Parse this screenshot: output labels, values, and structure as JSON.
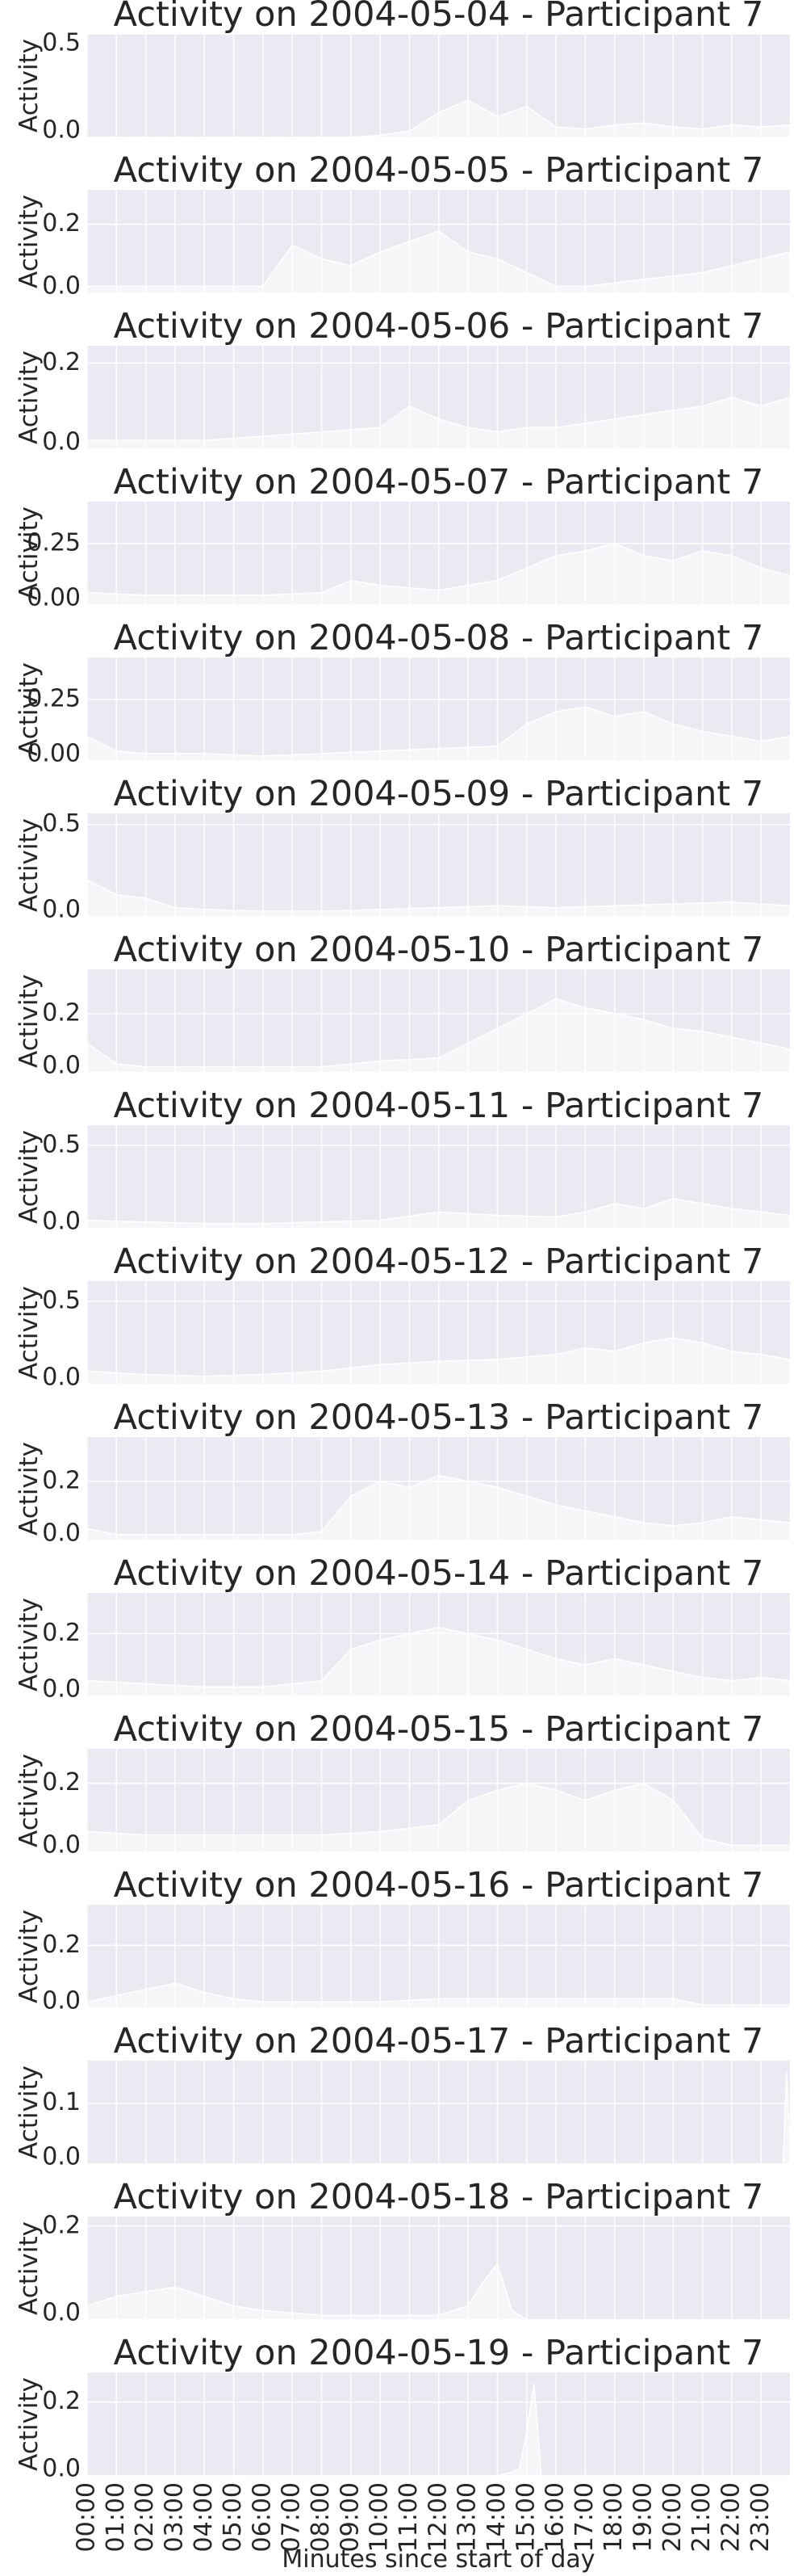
{
  "colors": {
    "axes_bg": "#eaeaf2",
    "grid": "#ffffff",
    "trace": "#ffffff",
    "text": "#262626"
  },
  "xlabel": "Minutes since start of day",
  "x_ticks": [
    "00:00",
    "01:00",
    "02:00",
    "03:00",
    "04:00",
    "05:00",
    "06:00",
    "07:00",
    "08:00",
    "09:00",
    "10:00",
    "11:00",
    "12:00",
    "13:00",
    "14:00",
    "15:00",
    "16:00",
    "17:00",
    "18:00",
    "19:00",
    "20:00",
    "21:00",
    "22:00",
    "23:00"
  ],
  "chart_data": [
    {
      "type": "area",
      "title": "Activity on 2004-05-04 - Participant 7",
      "ylabel": "Activity",
      "ylim": [
        0,
        0.5
      ],
      "yticks": [
        "0.5",
        "0.0"
      ],
      "ytick_values": [
        0.5,
        0
      ],
      "x": [
        0,
        180,
        360,
        540,
        600,
        660,
        720,
        780,
        840,
        900,
        960,
        1020,
        1080,
        1140,
        1200,
        1260,
        1320,
        1380,
        1439
      ],
      "values": [
        0,
        0,
        0,
        0,
        0.01,
        0.03,
        0.12,
        0.18,
        0.1,
        0.15,
        0.05,
        0.04,
        0.06,
        0.07,
        0.05,
        0.04,
        0.06,
        0.05,
        0.06
      ]
    },
    {
      "type": "area",
      "title": "Activity on 2004-05-05 - Participant 7",
      "ylabel": "Activity",
      "ylim": [
        0,
        0.3
      ],
      "yticks": [
        "0.2",
        "0.0"
      ],
      "ytick_values": [
        0.2,
        0
      ],
      "x": [
        0,
        60,
        120,
        240,
        360,
        420,
        480,
        540,
        600,
        660,
        720,
        780,
        840,
        900,
        960,
        1020,
        1080,
        1140,
        1200,
        1260,
        1320,
        1380,
        1439
      ],
      "values": [
        0.02,
        0.02,
        0.02,
        0.02,
        0.02,
        0.14,
        0.1,
        0.08,
        0.12,
        0.15,
        0.18,
        0.12,
        0.1,
        0.06,
        0.02,
        0.02,
        0.03,
        0.04,
        0.05,
        0.06,
        0.08,
        0.1,
        0.12
      ]
    },
    {
      "type": "area",
      "title": "Activity on 2004-05-06 - Participant 7",
      "ylabel": "Activity",
      "ylim": [
        0,
        0.24
      ],
      "yticks": [
        "0.2",
        "0.0"
      ],
      "ytick_values": [
        0.2,
        0
      ],
      "x": [
        0,
        120,
        240,
        360,
        480,
        600,
        660,
        720,
        780,
        840,
        900,
        960,
        1020,
        1080,
        1140,
        1200,
        1260,
        1320,
        1380,
        1439
      ],
      "values": [
        0.02,
        0.02,
        0.02,
        0.03,
        0.04,
        0.05,
        0.1,
        0.07,
        0.05,
        0.04,
        0.05,
        0.05,
        0.06,
        0.07,
        0.08,
        0.09,
        0.1,
        0.12,
        0.1,
        0.12
      ]
    },
    {
      "type": "area",
      "title": "Activity on 2004-05-07 - Participant 7",
      "ylabel": "Activity",
      "ylim": [
        0,
        0.42
      ],
      "yticks": [
        "0.25",
        "0.00"
      ],
      "ytick_values": [
        0.25,
        0
      ],
      "x": [
        0,
        120,
        240,
        360,
        480,
        540,
        600,
        660,
        720,
        780,
        840,
        900,
        960,
        1020,
        1080,
        1140,
        1200,
        1260,
        1320,
        1380,
        1439
      ],
      "values": [
        0.05,
        0.04,
        0.04,
        0.04,
        0.05,
        0.1,
        0.08,
        0.07,
        0.06,
        0.08,
        0.1,
        0.15,
        0.2,
        0.22,
        0.25,
        0.2,
        0.18,
        0.22,
        0.2,
        0.15,
        0.12
      ]
    },
    {
      "type": "area",
      "title": "Activity on 2004-05-08 - Participant 7",
      "ylabel": "Activity",
      "ylim": [
        0,
        0.42
      ],
      "yticks": [
        "0.25",
        "0.00"
      ],
      "ytick_values": [
        0.25,
        0
      ],
      "x": [
        0,
        60,
        120,
        240,
        360,
        480,
        600,
        720,
        840,
        900,
        960,
        1020,
        1080,
        1140,
        1200,
        1260,
        1320,
        1380,
        1439
      ],
      "values": [
        0.1,
        0.04,
        0.03,
        0.03,
        0.02,
        0.03,
        0.04,
        0.05,
        0.06,
        0.15,
        0.2,
        0.22,
        0.18,
        0.2,
        0.15,
        0.12,
        0.1,
        0.08,
        0.1
      ]
    },
    {
      "type": "area",
      "title": "Activity on 2004-05-09 - Participant 7",
      "ylabel": "Activity",
      "ylim": [
        0,
        0.56
      ],
      "yticks": [
        "0.5",
        "0.0"
      ],
      "ytick_values": [
        0.5,
        0
      ],
      "x": [
        0,
        60,
        120,
        180,
        240,
        360,
        480,
        600,
        720,
        840,
        960,
        1080,
        1200,
        1320,
        1439
      ],
      "values": [
        0.2,
        0.12,
        0.1,
        0.05,
        0.04,
        0.03,
        0.03,
        0.04,
        0.05,
        0.06,
        0.05,
        0.06,
        0.07,
        0.08,
        0.06
      ]
    },
    {
      "type": "area",
      "title": "Activity on 2004-05-10 - Participant 7",
      "ylabel": "Activity",
      "ylim": [
        0,
        0.35
      ],
      "yticks": [
        "0.2",
        "0.0"
      ],
      "ytick_values": [
        0.2,
        0
      ],
      "x": [
        0,
        60,
        120,
        240,
        360,
        480,
        600,
        720,
        780,
        840,
        900,
        960,
        1020,
        1080,
        1140,
        1200,
        1260,
        1320,
        1380,
        1439
      ],
      "values": [
        0.1,
        0.03,
        0.02,
        0.02,
        0.02,
        0.02,
        0.04,
        0.05,
        0.1,
        0.15,
        0.2,
        0.25,
        0.22,
        0.2,
        0.18,
        0.15,
        0.14,
        0.12,
        0.1,
        0.08
      ]
    },
    {
      "type": "area",
      "title": "Activity on 2004-05-11 - Participant 7",
      "ylabel": "Activity",
      "ylim": [
        0,
        0.62
      ],
      "yticks": [
        "0.5",
        "0.0"
      ],
      "ytick_values": [
        0.5,
        0
      ],
      "x": [
        0,
        120,
        240,
        360,
        480,
        600,
        720,
        840,
        960,
        1020,
        1080,
        1140,
        1200,
        1260,
        1320,
        1380,
        1439
      ],
      "values": [
        0.05,
        0.04,
        0.03,
        0.03,
        0.04,
        0.05,
        0.1,
        0.08,
        0.07,
        0.1,
        0.15,
        0.12,
        0.18,
        0.15,
        0.12,
        0.1,
        0.08
      ]
    },
    {
      "type": "area",
      "title": "Activity on 2004-05-12 - Participant 7",
      "ylabel": "Activity",
      "ylim": [
        0,
        0.62
      ],
      "yticks": [
        "0.5",
        "0.0"
      ],
      "ytick_values": [
        0.5,
        0
      ],
      "x": [
        0,
        120,
        240,
        360,
        480,
        600,
        720,
        840,
        960,
        1020,
        1080,
        1140,
        1200,
        1260,
        1320,
        1380,
        1439
      ],
      "values": [
        0.08,
        0.06,
        0.05,
        0.06,
        0.08,
        0.12,
        0.14,
        0.15,
        0.18,
        0.22,
        0.2,
        0.25,
        0.28,
        0.25,
        0.2,
        0.18,
        0.15
      ]
    },
    {
      "type": "area",
      "title": "Activity on 2004-05-13 - Participant 7",
      "ylabel": "Activity",
      "ylim": [
        0,
        0.35
      ],
      "yticks": [
        "0.2",
        "0.0"
      ],
      "ytick_values": [
        0.2,
        0
      ],
      "x": [
        0,
        60,
        120,
        240,
        360,
        420,
        480,
        540,
        600,
        660,
        720,
        780,
        840,
        900,
        960,
        1020,
        1080,
        1140,
        1200,
        1260,
        1320,
        1380,
        1439
      ],
      "values": [
        0.04,
        0.02,
        0.02,
        0.02,
        0.02,
        0.02,
        0.03,
        0.15,
        0.2,
        0.18,
        0.22,
        0.2,
        0.18,
        0.15,
        0.12,
        0.1,
        0.08,
        0.06,
        0.05,
        0.06,
        0.08,
        0.07,
        0.06
      ]
    },
    {
      "type": "area",
      "title": "Activity on 2004-05-14 - Participant 7",
      "ylabel": "Activity",
      "ylim": [
        0,
        0.33
      ],
      "yticks": [
        "0.2",
        "0.0"
      ],
      "ytick_values": [
        0.2,
        0
      ],
      "x": [
        0,
        120,
        240,
        360,
        420,
        480,
        540,
        600,
        660,
        720,
        780,
        840,
        900,
        960,
        1020,
        1080,
        1140,
        1200,
        1260,
        1320,
        1380,
        1439
      ],
      "values": [
        0.05,
        0.04,
        0.03,
        0.03,
        0.04,
        0.05,
        0.15,
        0.18,
        0.2,
        0.22,
        0.2,
        0.18,
        0.15,
        0.12,
        0.1,
        0.12,
        0.1,
        0.08,
        0.06,
        0.05,
        0.06,
        0.05
      ]
    },
    {
      "type": "area",
      "title": "Activity on 2004-05-15 - Participant 7",
      "ylabel": "Activity",
      "ylim": [
        0,
        0.3
      ],
      "yticks": [
        "0.2",
        "0.0"
      ],
      "ytick_values": [
        0.2,
        0
      ],
      "x": [
        0,
        120,
        240,
        360,
        480,
        600,
        720,
        780,
        840,
        900,
        960,
        1020,
        1080,
        1140,
        1200,
        1260,
        1320,
        1380,
        1439
      ],
      "values": [
        0.06,
        0.05,
        0.05,
        0.05,
        0.05,
        0.06,
        0.08,
        0.15,
        0.18,
        0.2,
        0.18,
        0.15,
        0.18,
        0.2,
        0.15,
        0.04,
        0.02,
        0.02,
        0.02
      ]
    },
    {
      "type": "area",
      "title": "Activity on 2004-05-16 - Participant 7",
      "ylabel": "Activity",
      "ylim": [
        0,
        0.33
      ],
      "yticks": [
        "0.2",
        "0.0"
      ],
      "ytick_values": [
        0.2,
        0
      ],
      "x": [
        0,
        60,
        120,
        180,
        240,
        300,
        360,
        480,
        600,
        720,
        840,
        960,
        1080,
        1200,
        1260,
        1320,
        1380,
        1439
      ],
      "values": [
        0.02,
        0.04,
        0.06,
        0.08,
        0.05,
        0.03,
        0.02,
        0.02,
        0.02,
        0.03,
        0.03,
        0.03,
        0.03,
        0.03,
        0.01,
        0.01,
        0.01,
        0.01
      ]
    },
    {
      "type": "area",
      "title": "Activity on 2004-05-17 - Participant 7",
      "ylabel": "Activity",
      "ylim": [
        0,
        0.17
      ],
      "yticks": [
        "0.1",
        "0.0"
      ],
      "ytick_values": [
        0.1,
        0
      ],
      "x": [
        0,
        240,
        480,
        720,
        960,
        1200,
        1400,
        1425,
        1432,
        1439
      ],
      "values": [
        0,
        0,
        0,
        0,
        0,
        0,
        0,
        0,
        0.15,
        0.03
      ]
    },
    {
      "type": "area",
      "title": "Activity on 2004-05-18 - Participant 7",
      "ylabel": "Activity",
      "ylim": [
        0,
        0.22
      ],
      "yticks": [
        "0.2",
        "0.0"
      ],
      "ytick_values": [
        0.2,
        0
      ],
      "x": [
        0,
        60,
        120,
        180,
        240,
        300,
        360,
        480,
        600,
        720,
        780,
        810,
        840,
        870,
        900,
        960,
        1080,
        1200,
        1320,
        1439
      ],
      "values": [
        0.03,
        0.05,
        0.06,
        0.07,
        0.05,
        0.03,
        0.02,
        0.01,
        0.01,
        0.01,
        0.03,
        0.08,
        0.12,
        0.02,
        0,
        0,
        0,
        0,
        0,
        0
      ]
    },
    {
      "type": "area",
      "title": "Activity on 2004-05-19 - Participant 7",
      "ylabel": "Activity",
      "ylim": [
        0,
        0.28
      ],
      "yticks": [
        "0.2",
        "0.0"
      ],
      "ytick_values": [
        0.2,
        0
      ],
      "x": [
        0,
        120,
        240,
        360,
        480,
        600,
        720,
        840,
        870,
        885,
        900,
        915,
        930,
        960,
        1080,
        1200,
        1320,
        1439
      ],
      "values": [
        0,
        0,
        0,
        0,
        0,
        0,
        0,
        0,
        0.01,
        0.02,
        0.12,
        0.25,
        0,
        0,
        0,
        0,
        0,
        0
      ]
    }
  ]
}
